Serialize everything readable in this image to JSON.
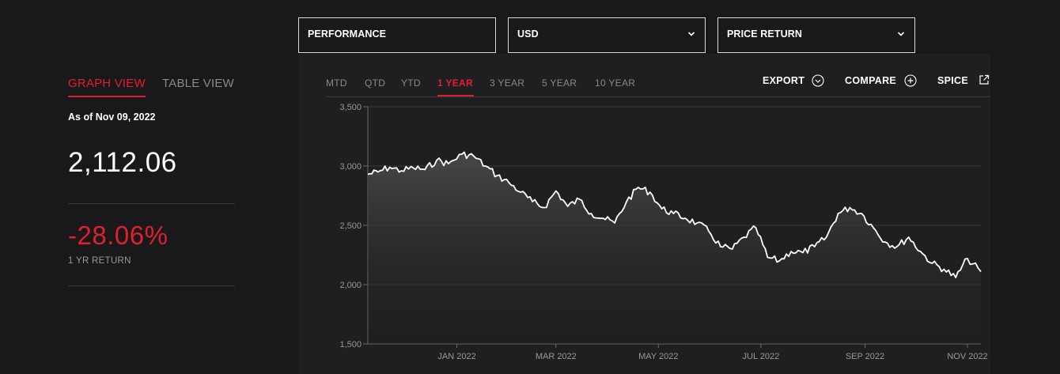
{
  "selectors": {
    "metric": "PERFORMANCE",
    "currency": "USD",
    "return_type": "PRICE RETURN"
  },
  "view_tabs": {
    "graph": "GRAPH VIEW",
    "table": "TABLE VIEW",
    "active": "GRAPH VIEW"
  },
  "summary": {
    "as_of": "As of Nov 09, 2022",
    "value": "2,112.06",
    "return": "-28.06%",
    "return_label": "1 YR RETURN"
  },
  "periods": [
    "MTD",
    "QTD",
    "YTD",
    "1 YEAR",
    "3 YEAR",
    "5 YEAR",
    "10 YEAR"
  ],
  "active_period": "1 YEAR",
  "actions": {
    "export": "EXPORT",
    "compare": "COMPARE",
    "spice": "SPICE"
  },
  "colors": {
    "accent": "#e0202e",
    "background": "#19181a",
    "panel": "#1f1e20",
    "line": "#ffffff"
  },
  "chart_data": {
    "type": "area",
    "y_ticks": [
      "3,500",
      "3,000",
      "2,500",
      "2,000",
      "1,500"
    ],
    "ylim": [
      1500,
      3500
    ],
    "x_ticks": [
      "JAN 2022",
      "MAR 2022",
      "MAY 2022",
      "JUL 2022",
      "SEP 2022",
      "NOV 2022"
    ],
    "xlim": [
      "2021-11-09",
      "2022-11-09"
    ],
    "grid": true,
    "series": [
      {
        "points": [
          [
            "2021-11-09",
            2930
          ],
          [
            "2021-11-15",
            2950
          ],
          [
            "2021-11-22",
            2990
          ],
          [
            "2021-11-29",
            2960
          ],
          [
            "2021-12-06",
            2985
          ],
          [
            "2021-12-13",
            2970
          ],
          [
            "2021-12-20",
            3050
          ],
          [
            "2021-12-27",
            3020
          ],
          [
            "2022-01-04",
            3100
          ],
          [
            "2022-01-11",
            3085
          ],
          [
            "2022-01-18",
            3000
          ],
          [
            "2022-01-25",
            2920
          ],
          [
            "2022-02-01",
            2860
          ],
          [
            "2022-02-08",
            2780
          ],
          [
            "2022-02-15",
            2700
          ],
          [
            "2022-02-22",
            2650
          ],
          [
            "2022-03-01",
            2790
          ],
          [
            "2022-03-08",
            2660
          ],
          [
            "2022-03-15",
            2720
          ],
          [
            "2022-03-22",
            2600
          ],
          [
            "2022-03-29",
            2560
          ],
          [
            "2022-04-05",
            2520
          ],
          [
            "2022-04-12",
            2700
          ],
          [
            "2022-04-19",
            2820
          ],
          [
            "2022-04-26",
            2780
          ],
          [
            "2022-05-03",
            2640
          ],
          [
            "2022-05-10",
            2600
          ],
          [
            "2022-05-17",
            2560
          ],
          [
            "2022-05-24",
            2520
          ],
          [
            "2022-05-31",
            2450
          ],
          [
            "2022-06-07",
            2320
          ],
          [
            "2022-06-14",
            2300
          ],
          [
            "2022-06-21",
            2400
          ],
          [
            "2022-06-28",
            2480
          ],
          [
            "2022-07-05",
            2230
          ],
          [
            "2022-07-12",
            2200
          ],
          [
            "2022-07-19",
            2280
          ],
          [
            "2022-07-26",
            2270
          ],
          [
            "2022-08-02",
            2320
          ],
          [
            "2022-08-09",
            2400
          ],
          [
            "2022-08-16",
            2600
          ],
          [
            "2022-08-23",
            2650
          ],
          [
            "2022-08-30",
            2600
          ],
          [
            "2022-09-06",
            2480
          ],
          [
            "2022-09-13",
            2360
          ],
          [
            "2022-09-20",
            2320
          ],
          [
            "2022-09-27",
            2400
          ],
          [
            "2022-10-04",
            2280
          ],
          [
            "2022-10-11",
            2180
          ],
          [
            "2022-10-18",
            2130
          ],
          [
            "2022-10-25",
            2060
          ],
          [
            "2022-11-01",
            2220
          ],
          [
            "2022-11-09",
            2110
          ]
        ]
      }
    ]
  }
}
